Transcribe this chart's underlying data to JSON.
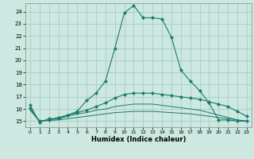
{
  "xlabel": "Humidex (Indice chaleur)",
  "bg_color": "#cce8e0",
  "grid_color": "#aaccc4",
  "line_color": "#1a7a6e",
  "xlim": [
    -0.5,
    23.5
  ],
  "ylim": [
    14.5,
    24.7
  ],
  "yticks": [
    15,
    16,
    17,
    18,
    19,
    20,
    21,
    22,
    23,
    24
  ],
  "xticks": [
    0,
    1,
    2,
    3,
    4,
    5,
    6,
    7,
    8,
    9,
    10,
    11,
    12,
    13,
    14,
    15,
    16,
    17,
    18,
    19,
    20,
    21,
    22,
    23
  ],
  "series": [
    {
      "x": [
        0,
        1,
        2,
        3,
        4,
        5,
        6,
        7,
        8,
        9,
        10,
        11,
        12,
        13,
        14,
        15,
        16,
        17,
        18,
        19,
        20,
        21,
        22,
        23
      ],
      "y": [
        16.3,
        14.9,
        15.2,
        15.2,
        15.5,
        15.8,
        16.7,
        17.3,
        18.3,
        21.0,
        23.9,
        24.5,
        23.5,
        23.5,
        23.4,
        21.9,
        19.2,
        18.3,
        17.5,
        16.5,
        15.1,
        15.1,
        15.0,
        15.0
      ],
      "marker": true
    },
    {
      "x": [
        0,
        1,
        2,
        3,
        4,
        5,
        6,
        7,
        8,
        9,
        10,
        11,
        12,
        13,
        14,
        15,
        16,
        17,
        18,
        19,
        20,
        21,
        22,
        23
      ],
      "y": [
        16.1,
        15.0,
        15.1,
        15.3,
        15.5,
        15.7,
        15.9,
        16.2,
        16.5,
        16.9,
        17.2,
        17.3,
        17.3,
        17.3,
        17.2,
        17.1,
        17.0,
        16.9,
        16.8,
        16.6,
        16.4,
        16.2,
        15.8,
        15.4
      ],
      "marker": true
    },
    {
      "x": [
        0,
        1,
        2,
        3,
        4,
        5,
        6,
        7,
        8,
        9,
        10,
        11,
        12,
        13,
        14,
        15,
        16,
        17,
        18,
        19,
        20,
        21,
        22,
        23
      ],
      "y": [
        16.0,
        15.0,
        15.1,
        15.2,
        15.4,
        15.6,
        15.7,
        15.9,
        16.0,
        16.2,
        16.3,
        16.4,
        16.4,
        16.4,
        16.3,
        16.2,
        16.1,
        16.0,
        15.9,
        15.7,
        15.5,
        15.3,
        15.1,
        15.0
      ],
      "marker": false
    },
    {
      "x": [
        0,
        1,
        2,
        3,
        4,
        5,
        6,
        7,
        8,
        9,
        10,
        11,
        12,
        13,
        14,
        15,
        16,
        17,
        18,
        19,
        20,
        21,
        22,
        23
      ],
      "y": [
        15.9,
        15.0,
        15.05,
        15.1,
        15.2,
        15.3,
        15.4,
        15.5,
        15.6,
        15.7,
        15.75,
        15.8,
        15.8,
        15.8,
        15.75,
        15.7,
        15.65,
        15.6,
        15.5,
        15.4,
        15.3,
        15.2,
        15.1,
        15.0
      ],
      "marker": false
    }
  ]
}
